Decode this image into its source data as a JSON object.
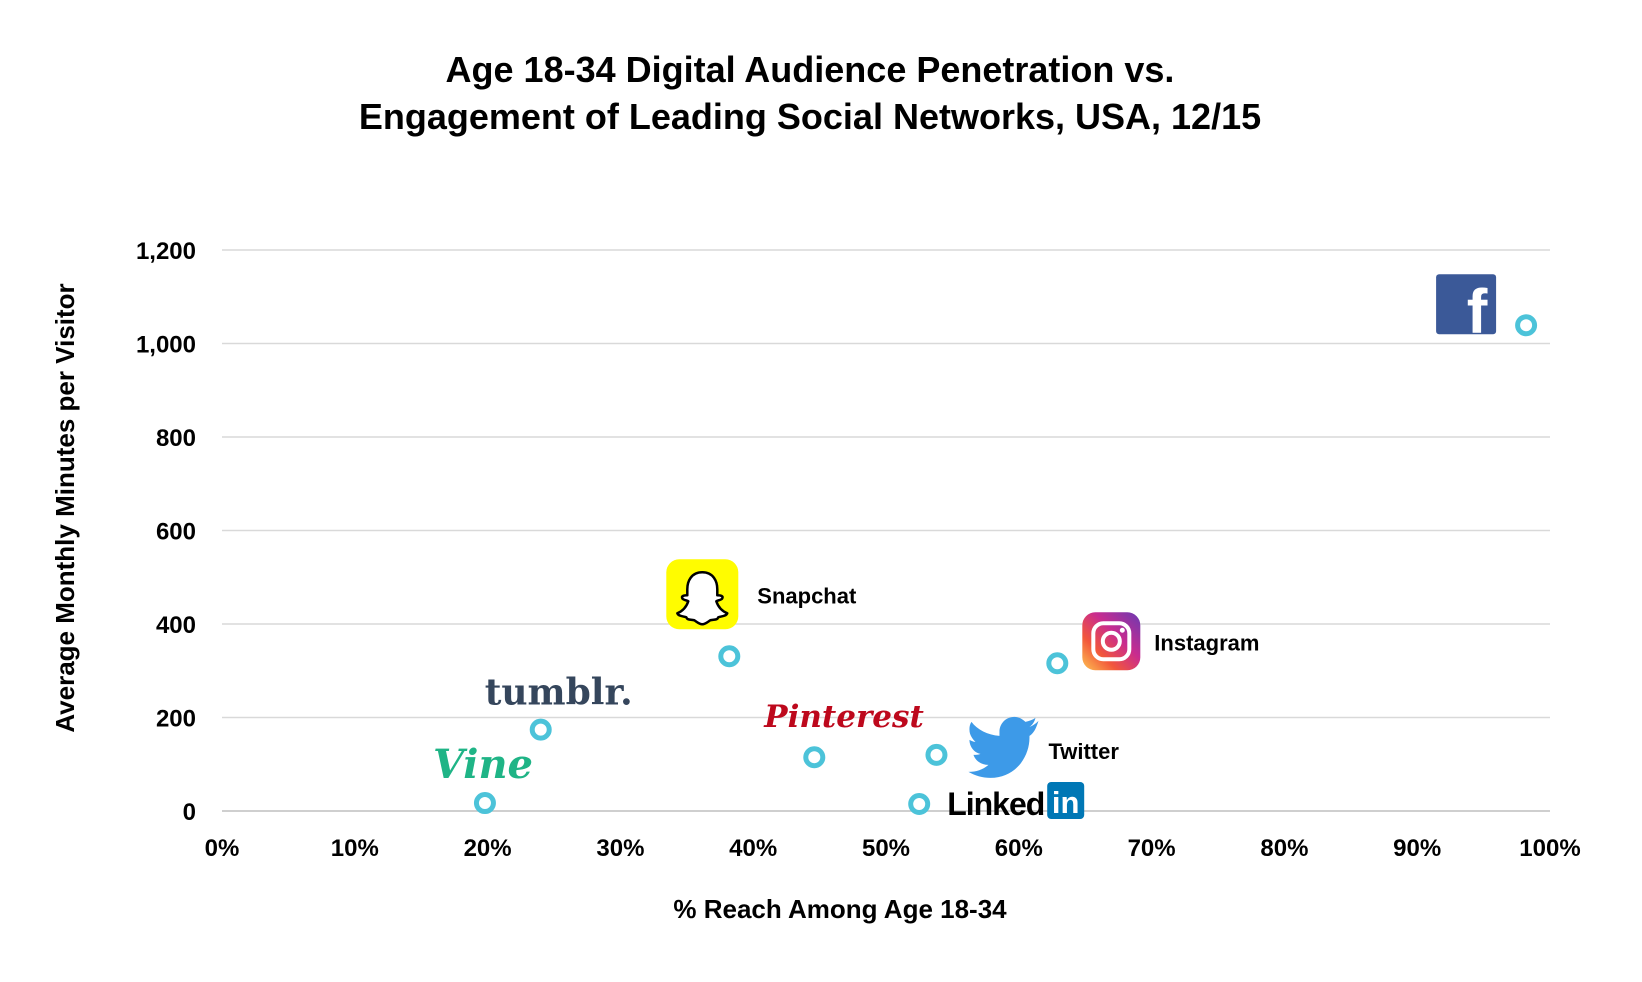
{
  "chart_data": {
    "type": "scatter",
    "title": [
      "Age 18-34 Digital Audience Penetration vs.",
      "Engagement of Leading Social Networks, USA, 12/15"
    ],
    "xlabel": "% Reach Among Age 18-34",
    "ylabel": "Average Monthly Minutes per Visitor",
    "xlim": [
      0,
      100
    ],
    "ylim": [
      0,
      1200
    ],
    "x_ticks": [
      "0%",
      "10%",
      "20%",
      "30%",
      "40%",
      "50%",
      "60%",
      "70%",
      "80%",
      "90%",
      "100%"
    ],
    "y_ticks": [
      "0",
      "200",
      "400",
      "600",
      "800",
      "1,000",
      "1,200"
    ],
    "grid": "horizontal",
    "marker_color": "#4cc3d9",
    "points": [
      {
        "network": "Vine",
        "x": 19.8,
        "y": 17,
        "label": "Vine",
        "label_kind": "logo",
        "color": "#1fb486"
      },
      {
        "network": "Tumblr",
        "x": 24,
        "y": 174,
        "label": "tumblr.",
        "label_kind": "logo",
        "color": "#35465c"
      },
      {
        "network": "Snapchat",
        "x": 38.2,
        "y": 331,
        "label": "Snapchat",
        "label_kind": "text",
        "color": "#fffc00"
      },
      {
        "network": "Pinterest",
        "x": 44.6,
        "y": 115,
        "label": "Pinterest",
        "label_kind": "logo",
        "color": "#bd081c"
      },
      {
        "network": "LinkedIn",
        "x": 52.5,
        "y": 15,
        "label": "Linked",
        "label_kind": "logo",
        "color": "#0077b5"
      },
      {
        "network": "Twitter",
        "x": 53.8,
        "y": 120,
        "label": "Twitter",
        "label_kind": "text",
        "color": "#3d9ae8"
      },
      {
        "network": "Instagram",
        "x": 62.9,
        "y": 316,
        "label": "Instagram",
        "label_kind": "text",
        "color": "#c13584"
      },
      {
        "network": "Facebook",
        "x": 98.2,
        "y": 1039,
        "label": "",
        "label_kind": "icon",
        "color": "#3b5998"
      }
    ]
  },
  "logos": {
    "linkedin_in": "in",
    "facebook_f": "f"
  }
}
